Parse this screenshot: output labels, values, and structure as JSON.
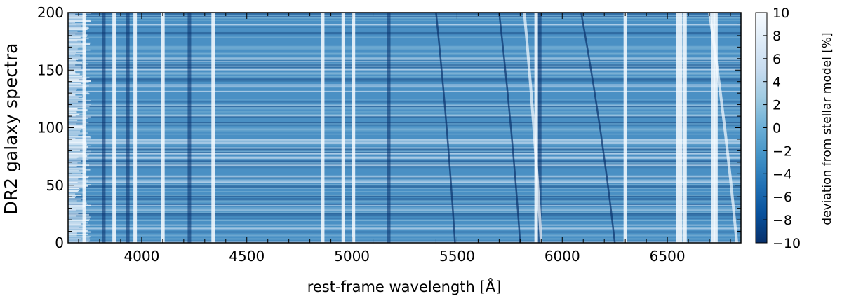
{
  "chart_data": {
    "type": "heatmap",
    "title": "",
    "xlabel": "rest-frame wavelength [Å]",
    "ylabel": "DR2 galaxy spectra",
    "xlim": [
      3650,
      6850
    ],
    "ylim": [
      0,
      200
    ],
    "x_ticks": [
      4000,
      4500,
      5000,
      5500,
      6000,
      6500
    ],
    "y_ticks": [
      0,
      50,
      100,
      150,
      200
    ],
    "colorbar": {
      "label": "deviation from stellar model [%]",
      "range": [
        -10,
        10
      ],
      "ticks": [
        10,
        8,
        6,
        4,
        2,
        0,
        -2,
        -4,
        -6,
        -8,
        -10
      ],
      "tick_labels": [
        "10",
        "8",
        "6",
        "4",
        "2",
        "0",
        "−2",
        "−4",
        "−6",
        "−8",
        "−10"
      ],
      "colormap": "Blues_r",
      "color_low": "#08306b",
      "color_mid": "#6baed6",
      "color_high": "#f7fbff"
    },
    "n_spectra": 200,
    "bright_residual_lines_A": [
      3727,
      3869,
      3969,
      4101,
      4340,
      4861,
      4959,
      5007,
      5876,
      6300,
      6548,
      6563,
      6584,
      6717,
      6731
    ],
    "dark_residual_lines_A": [
      3820,
      3934,
      4227,
      5175,
      5893
    ],
    "sky_line_tracks_A": [
      {
        "at_y0": 5490,
        "at_y200": 5400,
        "polarity": "dark"
      },
      {
        "at_y0": 5800,
        "at_y200": 5700,
        "polarity": "dark"
      },
      {
        "at_y0": 5900,
        "at_y200": 5820,
        "polarity": "bright"
      },
      {
        "at_y0": 6250,
        "at_y200": 6090,
        "polarity": "dark"
      },
      {
        "at_y0": 6830,
        "at_y200": 6700,
        "polarity": "bright"
      }
    ],
    "grid": false,
    "legend": "none"
  }
}
